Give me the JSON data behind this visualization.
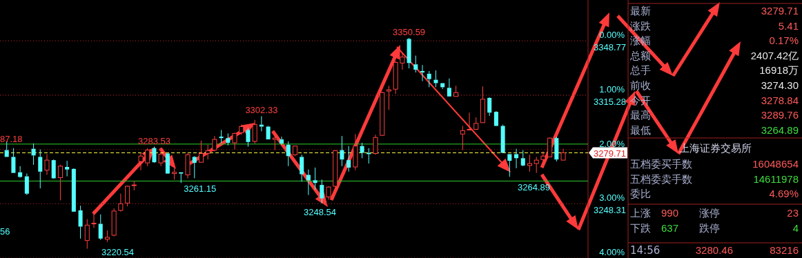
{
  "chart_data": [
    {
      "type": "candlestick",
      "categories": [
        null,
        null,
        null,
        null,
        null,
        null,
        null,
        null,
        null,
        null,
        null,
        null,
        null,
        null,
        null,
        null,
        null,
        null,
        null,
        null,
        null,
        null,
        null,
        null,
        null,
        null,
        null,
        null,
        null,
        null,
        null,
        null,
        null,
        null,
        null,
        null,
        null,
        null,
        null,
        null,
        null,
        null,
        null,
        null,
        null,
        null,
        null,
        null,
        null,
        null,
        null,
        null,
        null,
        null,
        null,
        null,
        null,
        null,
        null,
        null,
        null,
        null,
        null,
        null,
        null,
        null,
        null,
        null,
        null,
        null,
        null,
        null,
        null,
        null,
        null,
        null,
        null,
        null,
        null,
        null,
        null,
        null,
        null,
        null
      ],
      "ohlc": [
        [
          3281.4,
          3286.8,
          3277.2,
          3277.2
        ],
        [
          3277.2,
          3282.6,
          3267.3,
          3267.3
        ],
        [
          3267.7,
          3271.5,
          3264.4,
          3264.8
        ],
        [
          3265.2,
          3266.9,
          3253.7,
          3254.5
        ],
        [
          3282.2,
          3285.5,
          3272.3,
          3278.1
        ],
        [
          3277.2,
          3281.8,
          3257.8,
          3268.1
        ],
        [
          3269.0,
          3278.9,
          3266.1,
          3275.2
        ],
        [
          3275.2,
          3275.6,
          3263.6,
          3264.0
        ],
        [
          3264.4,
          3272.3,
          3250.4,
          3271.5
        ],
        [
          3271.0,
          3274.8,
          3265.2,
          3269.4
        ],
        [
          3269.8,
          3270.2,
          3243.4,
          3243.4
        ],
        [
          3244.2,
          3247.1,
          3226.8,
          3234.2
        ],
        [
          3225.6,
          3238.8,
          3220.54,
          3235.1
        ],
        [
          3235.9,
          3244.2,
          3233.4,
          3236.3
        ],
        [
          3235.9,
          3241.7,
          3226.0,
          3226.8
        ],
        [
          3226.4,
          3231.8,
          3224.7,
          3227.6
        ],
        [
          3228.9,
          3245.4,
          3228.1,
          3243.8
        ],
        [
          3244.2,
          3254.5,
          3243.4,
          3248.3
        ],
        [
          3248.7,
          3259.5,
          3246.7,
          3259.1
        ],
        [
          3259.5,
          3262.3,
          3256.6,
          3259.9
        ],
        [
          3274.4,
          3279.7,
          3269.0,
          3277.7
        ],
        [
          3273.5,
          3282.6,
          3271.5,
          3281.4
        ],
        [
          3282.6,
          3283.53,
          3273.5,
          3273.9
        ],
        [
          3273.5,
          3279.7,
          3271.5,
          3278.9
        ],
        [
          3279.3,
          3279.7,
          3266.9,
          3266.9
        ],
        [
          3266.9,
          3270.2,
          3263.2,
          3267.7
        ],
        [
          3267.7,
          3267.7,
          3261.15,
          3266.9
        ],
        [
          3266.1,
          3279.7,
          3264.0,
          3278.5
        ],
        [
          3277.2,
          3277.7,
          3264.0,
          3273.5
        ],
        [
          3273.9,
          3287.2,
          3273.5,
          3279.3
        ],
        [
          3279.3,
          3284.7,
          3275.6,
          3281.0
        ],
        [
          3281.4,
          3290.1,
          3280.6,
          3288.0
        ],
        [
          3289.7,
          3293.8,
          3285.9,
          3288.8
        ],
        [
          3288.8,
          3291.7,
          3284.3,
          3285.9
        ],
        [
          3285.9,
          3292.1,
          3281.8,
          3291.7
        ],
        [
          3292.1,
          3297.1,
          3290.9,
          3295.9
        ],
        [
          3293.8,
          3295.0,
          3283.5,
          3286.4
        ],
        [
          3286.8,
          3300.0,
          3285.5,
          3297.1
        ],
        [
          3297.1,
          3302.33,
          3293.0,
          3295.9
        ],
        [
          3295.9,
          3296.3,
          3288.0,
          3288.0
        ],
        [
          3288.0,
          3292.1,
          3281.4,
          3288.8
        ],
        [
          3288.0,
          3289.7,
          3284.7,
          3285.5
        ],
        [
          3284.7,
          3286.8,
          3271.5,
          3277.7
        ],
        [
          3278.5,
          3283.9,
          3277.7,
          3283.9
        ],
        [
          3277.2,
          3278.5,
          3261.9,
          3266.5
        ],
        [
          3266.1,
          3269.4,
          3253.7,
          3262.8
        ],
        [
          3262.8,
          3270.6,
          3257.0,
          3261.1
        ],
        [
          3259.9,
          3263.2,
          3248.54,
          3251.6
        ],
        [
          3252.5,
          3259.1,
          3250.8,
          3258.6
        ],
        [
          3259.1,
          3281.4,
          3258.6,
          3281.0
        ],
        [
          3281.4,
          3290.1,
          3271.5,
          3275.6
        ],
        [
          3275.2,
          3283.9,
          3268.1,
          3270.6
        ],
        [
          3271.0,
          3291.3,
          3269.0,
          3283.9
        ],
        [
          3283.9,
          3285.9,
          3276.4,
          3279.7
        ],
        [
          3279.7,
          3282.6,
          3273.1,
          3278.9
        ],
        [
          3279.3,
          3290.9,
          3278.5,
          3289.2
        ],
        [
          3290.5,
          3317.4,
          3290.1,
          3316.9
        ],
        [
          3317.8,
          3321.1,
          3306.2,
          3318.6
        ],
        [
          3319.0,
          3336.4,
          3316.1,
          3335.5
        ],
        [
          3335.1,
          3341.7,
          3331.0,
          3338.8
        ],
        [
          3350.0,
          3350.59,
          3331.8,
          3335.1
        ],
        [
          3334.3,
          3339.7,
          3329.3,
          3331.0
        ],
        [
          3330.2,
          3333.9,
          3324.0,
          3329.3
        ],
        [
          3328.5,
          3330.2,
          3320.2,
          3325.2
        ],
        [
          3324.8,
          3330.6,
          3320.2,
          3322.7
        ],
        [
          3322.7,
          3322.7,
          3319.0,
          3320.2
        ],
        [
          3319.8,
          3325.6,
          3314.5,
          3314.5
        ],
        [
          3314.5,
          3321.1,
          3314.5,
          3316.9
        ],
        [
          3291.3,
          3296.3,
          3281.4,
          3293.4
        ],
        [
          3293.8,
          3304.5,
          3293.8,
          3294.2
        ],
        [
          3294.2,
          3301.6,
          3293.8,
          3297.9
        ],
        [
          3298.3,
          3320.7,
          3298.3,
          3312.8
        ],
        [
          3313.6,
          3314.0,
          3302.5,
          3304.5
        ],
        [
          3305.0,
          3305.4,
          3296.3,
          3296.3
        ],
        [
          3296.3,
          3297.1,
          3279.7,
          3279.7
        ],
        [
          3278.9,
          3278.9,
          3264.89,
          3274.8
        ],
        [
          3278.9,
          3282.2,
          3270.2,
          3276.4
        ],
        [
          3276.4,
          3281.4,
          3271.5,
          3271.9
        ],
        [
          3271.9,
          3278.5,
          3268.1,
          3273.1
        ],
        [
          3273.1,
          3277.2,
          3267.3,
          3275.2
        ],
        [
          3275.6,
          3280.6,
          3274.4,
          3277.7
        ],
        [
          3277.2,
          3289.2,
          3277.2,
          3288.8
        ],
        [
          3288.8,
          3289.7,
          3274.4,
          3275.6
        ],
        [
          3275.2,
          3282.2,
          3275.2,
          3279.71
        ]
      ],
      "ylim": [
        3214.82,
        3374.0
      ],
      "yticks": [
        3348.77,
        3315.28,
        3248.31
      ],
      "y2lim": [
        4.0,
        -0.753
      ],
      "y2ticks": [
        {
          "value": 0,
          "label": "0.00%"
        },
        {
          "value": 1,
          "label": "1.00%"
        },
        {
          "value": 2,
          "label": "2.00%"
        },
        {
          "value": 3,
          "label": "3.00%"
        },
        {
          "value": 4,
          "label": "4.00%"
        }
      ],
      "grid": true,
      "ref_lines": [
        {
          "axis": "y",
          "value": 3279.71,
          "label": "3279.71",
          "color": "#ffff40",
          "line_style": "dashed"
        },
        {
          "axis": "y",
          "value": 3285.1,
          "color": "#2ecc2e"
        },
        {
          "axis": "y",
          "value": 3262.3,
          "color": "#2ecc2e"
        }
      ],
      "annotations": [
        {
          "text": "3350.59",
          "y": 3350.59
        },
        {
          "text": "3302.33",
          "y": 3302.33
        },
        {
          "text": "3283.53",
          "y": 3283.53
        },
        {
          "text": "3261.15",
          "y": 3261.15
        },
        "3248.54",
        "3220.54",
        "3264.89",
        "87.18",
        "56"
      ]
    },
    {
      "type": "other",
      "categories": [
        "最新",
        "涨跌",
        "涨幅",
        "总额",
        "总手",
        "前收",
        "今开",
        "最高",
        "最低"
      ],
      "value_labels": [
        "3279.71",
        "5.41",
        "0.17%",
        "2407.42亿",
        "16918万",
        "3274.30",
        "3278.84",
        "3289.76",
        "3264.89"
      ],
      "colors": [
        "#ff5a5a",
        "#ff5a5a",
        "#ff5a5a",
        "#e8e8e8",
        "#e8e8e8",
        "#e8e8e8",
        "#ff5a5a",
        "#ff5a5a",
        "#3fdc3f"
      ]
    },
    {
      "type": "other",
      "title": "上海证券交易所",
      "categories": [
        "五档委买手数",
        "五档委卖手数",
        "委比"
      ],
      "value_labels": [
        "16048654",
        "14611978",
        "4.69%"
      ],
      "colors": [
        "#ff5a5a",
        "#3fdc3f",
        "#ff5a5a"
      ]
    },
    {
      "type": "other",
      "categories": [
        "上涨",
        "涨停",
        "下跌",
        "跌停"
      ],
      "value_labels": [
        "990",
        "23",
        "637",
        "4"
      ],
      "colors": [
        "#ff5a5a",
        "#ff5a5a",
        "#3fdc3f",
        "#3fdc3f"
      ]
    },
    {
      "type": "other",
      "categories": [
        "14:56",
        null
      ],
      "value_labels": [
        "3280.46",
        "83216"
      ],
      "colors": [
        "#ff5a5a",
        "#ff5a5a"
      ]
    }
  ]
}
